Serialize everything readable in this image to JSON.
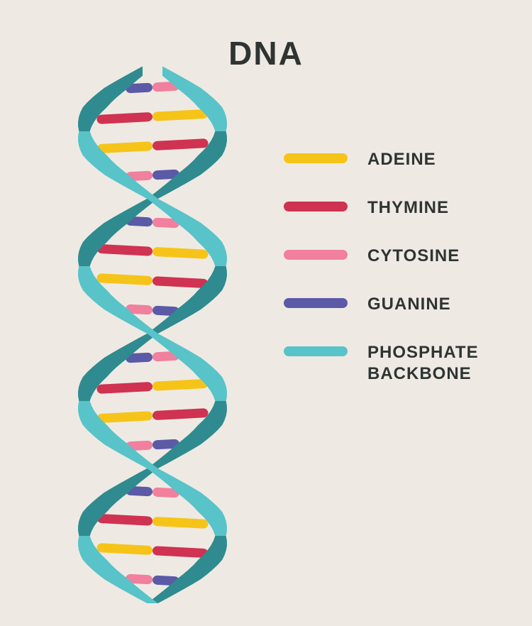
{
  "title": "DNA",
  "title_fontsize": 46,
  "title_color": "#2f3433",
  "background_color": "#eeeae3",
  "helix": {
    "backbone_light": "#58c3c8",
    "backbone_dark": "#2f8b8f",
    "base_colors": {
      "adenine": "#f6c419",
      "thymine": "#d03251",
      "cytosine": "#f17f9e",
      "guanine": "#5b5aa7"
    },
    "segments": 4,
    "rungs_per_segment": 4,
    "rung_height": 13,
    "rung_radius": 7,
    "strand_width": 34
  },
  "legend": {
    "label_fontsize": 24,
    "label_color": "#2f3433",
    "swatch_width": 90,
    "swatch_height": 14,
    "items": [
      {
        "key": "adenine",
        "label": "ADEINE",
        "color": "#f6c419"
      },
      {
        "key": "thymine",
        "label": "THYMINE",
        "color": "#d03251"
      },
      {
        "key": "cytosine",
        "label": "CYTOSINE",
        "color": "#f17f9e"
      },
      {
        "key": "guanine",
        "label": "GUANINE",
        "color": "#5b5aa7"
      },
      {
        "key": "backbone",
        "label": "PHOSPHATE\nBACKBONE",
        "color": "#58c3c8",
        "gap_above": true
      }
    ]
  }
}
